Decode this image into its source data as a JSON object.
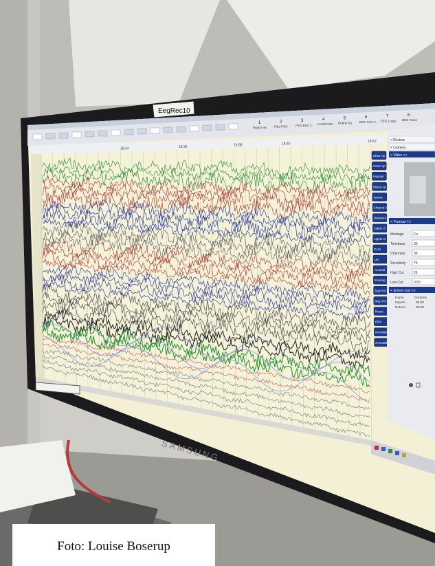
{
  "photo": {
    "monitor_label": "EegRec10",
    "brand": "SAMSUNG",
    "caption": "Foto: Louise Boserup"
  },
  "toolbar": {
    "pages": [
      {
        "num": "1",
        "label": "Hypno Hx"
      },
      {
        "num": "2",
        "label": "Fuld PSG"
      },
      {
        "num": "3",
        "label": "PSG EEG C"
      },
      {
        "num": "4",
        "label": "AASM PSG"
      },
      {
        "num": "5",
        "label": "Rubhe Ro"
      },
      {
        "num": "6",
        "label": "EEG Cure A"
      },
      {
        "num": "7",
        "label": "EEG Longi"
      },
      {
        "num": "8",
        "label": "EEG Trans"
      }
    ]
  },
  "timeline": {
    "times": [
      "18:34",
      "18:36",
      "18:38",
      "18:40",
      "18:50"
    ]
  },
  "event_buttons": [
    "Obstr Ap",
    "Centr Ap",
    "Hypopn",
    "Mixed Ap",
    "Apnea",
    "Cheyne-S",
    "Desatura",
    "Lights O",
    "Lights O",
    "PLM",
    "LM",
    "Arousal",
    "Snoring",
    "Start PS",
    "Stop PS",
    "Prune",
    "OBS",
    "Annotati",
    "Annotati"
  ],
  "right_panel": {
    "nav": [
      "Review",
      "Camera",
      "Video <<"
    ],
    "format_header": "Format <<",
    "format_fields": [
      {
        "label": "Montage",
        "value": "Fu"
      },
      {
        "label": "Timebase",
        "value": "30"
      },
      {
        "label": "Channels",
        "value": "30"
      },
      {
        "label": "Sensitivity",
        "value": "70"
      },
      {
        "label": "High Cut",
        "value": "25"
      },
      {
        "label": "Low Cut",
        "value": "0.50"
      }
    ],
    "event_list_header": "Event List <<",
    "event_list_cols": [
      "Name",
      "Duration"
    ],
    "event_list_rows": [
      {
        "name": "Impedi...",
        "dur": "00:00"
      },
      {
        "name": "Detect...",
        "dur": "00:00"
      }
    ]
  },
  "colors": {
    "trace_green": "#1e8a28",
    "trace_red": "#a8322a",
    "trace_blue": "#1a2a9a",
    "button_blue": "#1c3a8c",
    "screen_bg": "#f3f0d6"
  }
}
